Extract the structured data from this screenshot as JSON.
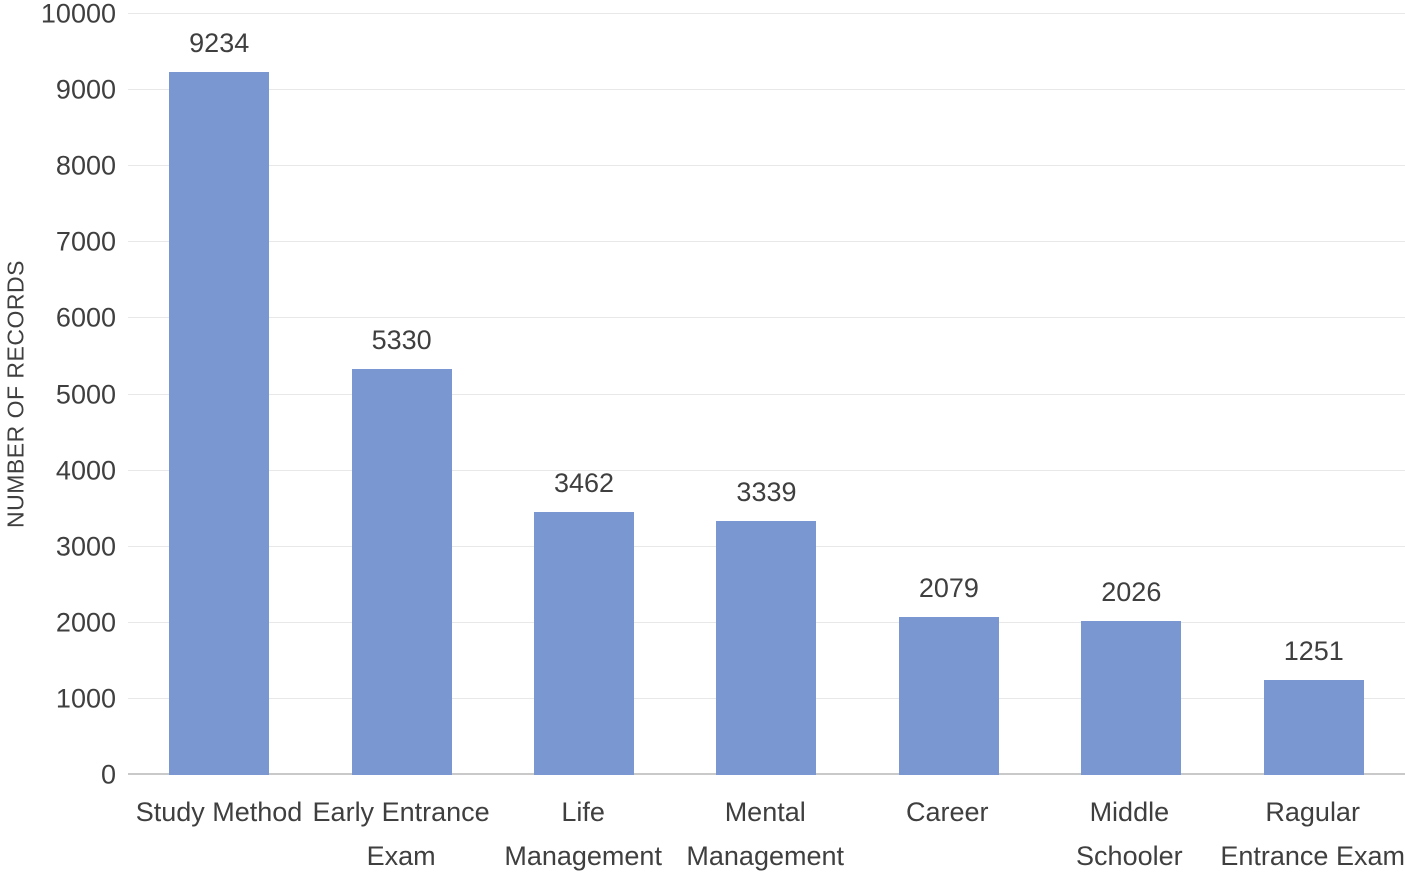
{
  "chart_data": {
    "type": "bar",
    "title": "",
    "xlabel": "",
    "ylabel": "NUMBER OF RECORDS",
    "categories": [
      "Study Method",
      "Early Entrance Exam",
      "Life Management",
      "Mental Management",
      "Career",
      "Middle Schooler",
      "Ragular Entrance Exam"
    ],
    "category_lines": [
      [
        "Study Method"
      ],
      [
        "Early Entrance",
        "Exam"
      ],
      [
        "Life",
        "Management"
      ],
      [
        "Mental",
        "Management"
      ],
      [
        "Career"
      ],
      [
        "Middle",
        "Schooler"
      ],
      [
        "Ragular",
        "Entrance Exam"
      ]
    ],
    "values": [
      9234,
      5330,
      3462,
      3339,
      2079,
      2026,
      1251
    ],
    "ylim": [
      0,
      10000
    ],
    "ytick_step": 1000,
    "grid": true,
    "legend": "none",
    "bar_color": "#7b97d1",
    "gridline_color": "#e8e8e8",
    "axis_line_color": "#c9c9c9",
    "text_color": "#3f3f3f"
  }
}
